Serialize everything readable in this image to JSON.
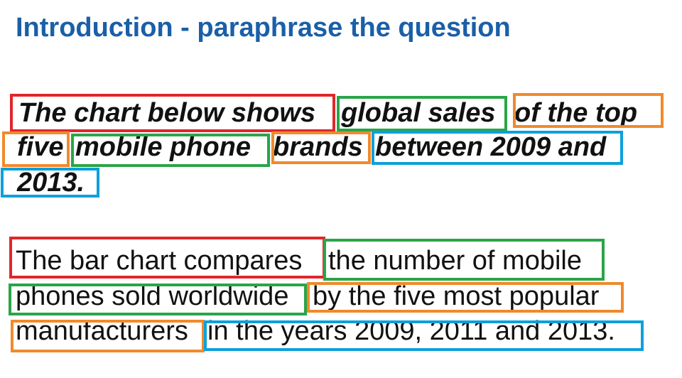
{
  "title": "Introduction - paraphrase the question",
  "colors": {
    "title": "#1a5fa8",
    "subject": "#e0262b",
    "topic": "#2aa548",
    "detail": "#f08a2c",
    "time": "#0ca0dc"
  },
  "question": {
    "line1": {
      "seg1": "The chart below shows",
      "seg2": "global sales",
      "seg3": "of the top"
    },
    "line2": {
      "seg1": "five",
      "seg2": "mobile phone",
      "seg3": "brands",
      "seg4": "between 2009 and"
    },
    "line3": {
      "seg1": "2013."
    }
  },
  "answer": {
    "line1": {
      "seg1": "The bar chart compares",
      "seg2": "the number of mobile"
    },
    "line2": {
      "seg1": "phones sold worldwide",
      "seg2": "by the five most popular"
    },
    "line3": {
      "seg1": "manufacturers",
      "seg2": "in the years 2009, 2011 and 2013."
    }
  }
}
